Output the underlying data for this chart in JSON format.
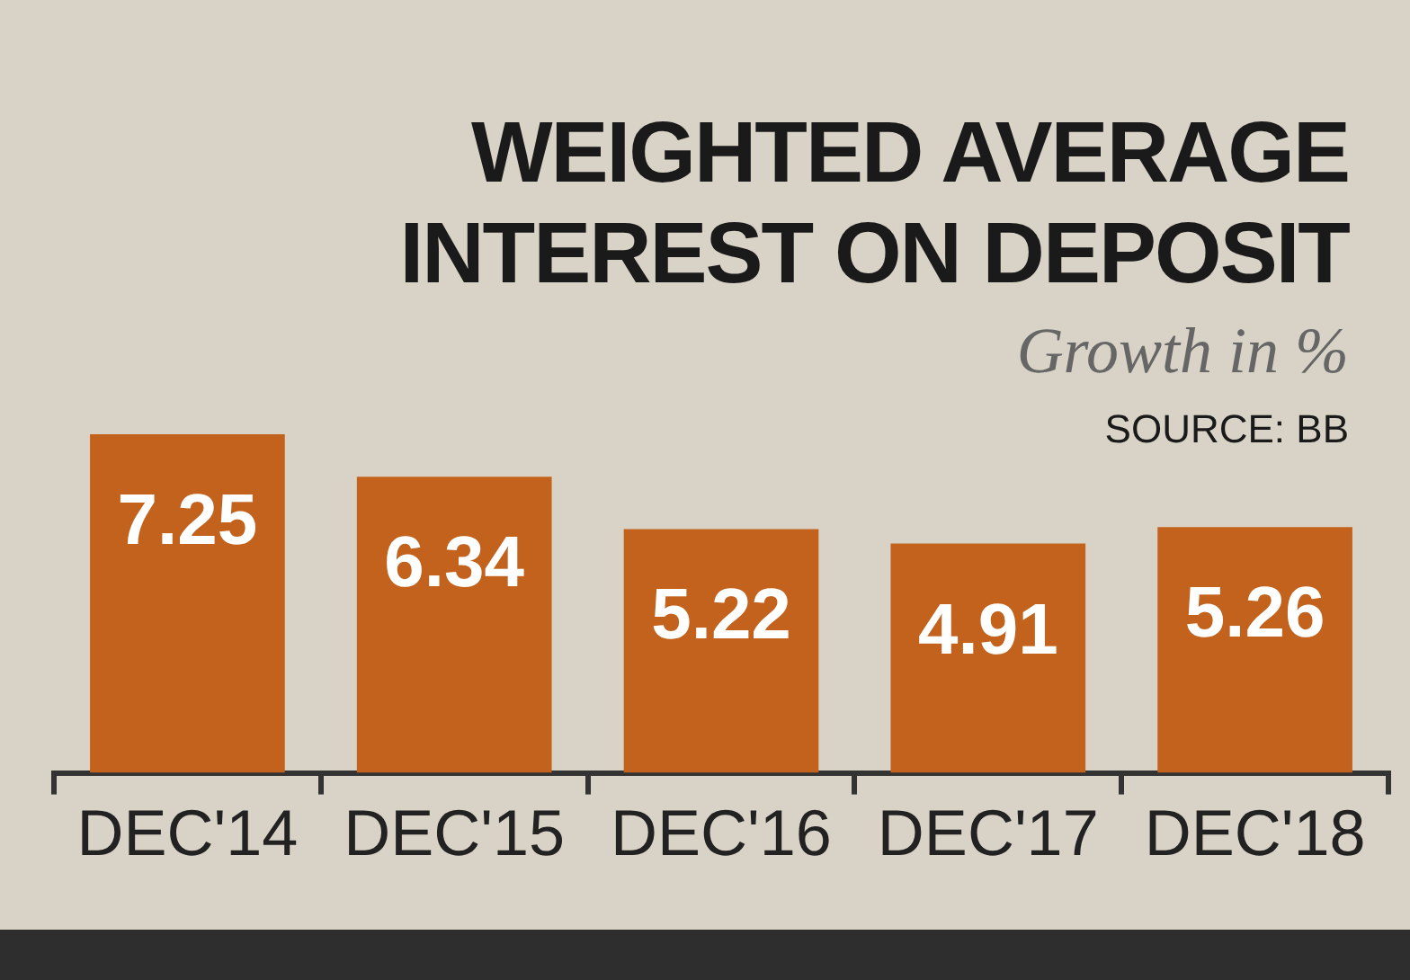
{
  "chart_data": {
    "type": "bar",
    "title": "WEIGHTED AVERAGE INTEREST ON DEPOSIT",
    "subtitle": "Growth in %",
    "annotations": [
      "SOURCE: BB"
    ],
    "categories": [
      "DEC'14",
      "DEC'15",
      "DEC'16",
      "DEC'17",
      "DEC'18"
    ],
    "values": [
      7.25,
      6.34,
      5.22,
      4.91,
      5.26
    ],
    "color": "#c2621c",
    "data_labels": true,
    "grid": false,
    "legend": false
  }
}
